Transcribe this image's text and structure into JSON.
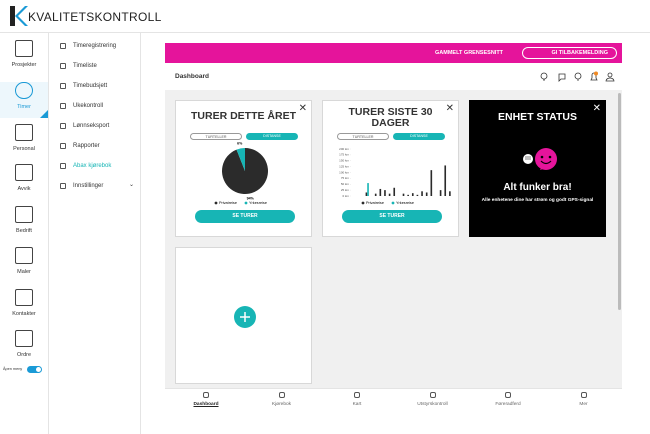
{
  "logo": "KVALITETSKONTROLL",
  "sidebar": {
    "items": [
      "Prosjekter",
      "Timer",
      "Personal",
      "Avvik",
      "Bedrift",
      "Maler",
      "Kontakter",
      "Ordre"
    ],
    "toggle": "Åpen meny"
  },
  "submenu": [
    "Timeregistrering",
    "Timeliste",
    "Timebudsjett",
    "Ukekontroll",
    "Lønnseksport",
    "Rapporter",
    "Abax kjørebok",
    "Innstillinger"
  ],
  "topbar": {
    "link": "GAMMELT GRENSESNITT",
    "button": "GI TILBAKEMELDING"
  },
  "page_title": "Dashboard",
  "cards": [
    {
      "title": "TURER DETTE ÅRET",
      "tabs": [
        "TURTELLER",
        "DISTANSE"
      ],
      "button": "SE TURER",
      "chart_data": {
        "type": "pie",
        "categories": [
          "Privatreise",
          "Yrkesreise"
        ],
        "values": [
          94,
          6
        ],
        "value_labels": [
          "94%",
          "6%"
        ],
        "colors": [
          "#2b2b2b",
          "#17b5b5"
        ]
      }
    },
    {
      "title": "TURER SISTE 30 DAGER",
      "tabs": [
        "TURTELLER",
        "DISTANSE"
      ],
      "button": "SE TURER",
      "chart_data": {
        "type": "bar",
        "categories": [
          null,
          null,
          null,
          null,
          null,
          null,
          null,
          null,
          null,
          null,
          null,
          null,
          null,
          null,
          null,
          null,
          null,
          null,
          null,
          null,
          null,
          null
        ],
        "series": [
          {
            "name": "Privatreise",
            "color": "#2b2b2b",
            "values": [
              0,
              0,
              0,
              15,
              0,
              10,
              30,
              25,
              10,
              35,
              0,
              10,
              5,
              12,
              5,
              20,
              15,
              110,
              0,
              25,
              130,
              20
            ]
          },
          {
            "name": "Yrkesreise",
            "color": "#17b5b5",
            "values": [
              0,
              0,
              0,
              55,
              0,
              0,
              0,
              0,
              0,
              0,
              0,
              0,
              0,
              0,
              0,
              0,
              0,
              0,
              0,
              0,
              0,
              0
            ]
          }
        ],
        "ylim": [
          0,
          200
        ],
        "yticks": [
          {
            "value": 0,
            "label": "0 km"
          },
          {
            "value": 25,
            "label": "25 km"
          },
          {
            "value": 50,
            "label": "50 km"
          },
          {
            "value": 75,
            "label": "75 km"
          },
          {
            "value": 100,
            "label": "100 km"
          },
          {
            "value": 125,
            "label": "125 km"
          },
          {
            "value": 150,
            "label": "150 km"
          },
          {
            "value": 175,
            "label": "175 km"
          },
          {
            "value": 200,
            "label": "200 km"
          }
        ]
      }
    },
    {
      "title": "ENHET STATUS",
      "message": "Alt funker bra!",
      "detail": "Alle enhetene dine har strøm og godt GPS-signal"
    }
  ],
  "bottom_nav": [
    "Dashboard",
    "Kjørebok",
    "Kart",
    "Utstyrskontroll",
    "Føreradferd",
    "Mer"
  ]
}
